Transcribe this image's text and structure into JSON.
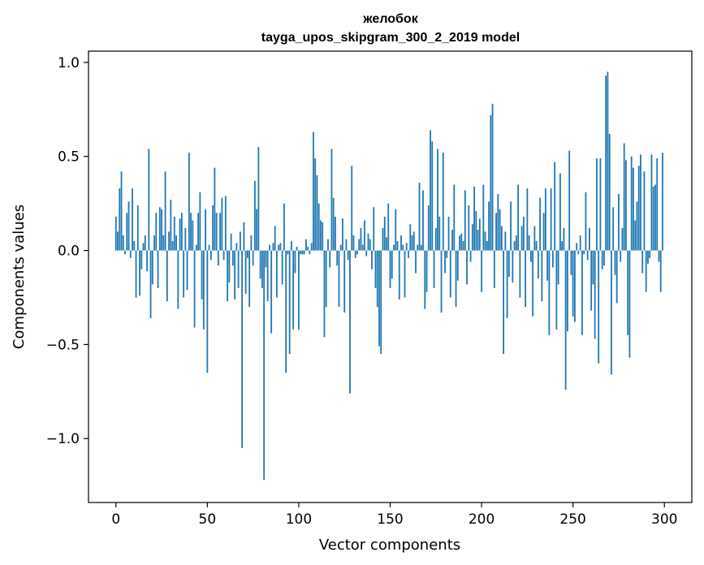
{
  "chart_data": {
    "type": "bar",
    "title_line1": "желобок",
    "title_line2": "tayga_upos_skipgram_300_2_2019 model",
    "xlabel": "Vector components",
    "ylabel": "Components values",
    "xlim": [
      -15,
      315
    ],
    "ylim": [
      -1.34,
      1.06
    ],
    "xticks": [
      0,
      50,
      100,
      150,
      200,
      250,
      300
    ],
    "xtick_labels": [
      "0",
      "50",
      "100",
      "150",
      "200",
      "250",
      "300"
    ],
    "yticks": [
      -1.0,
      -0.5,
      0.0,
      0.5,
      1.0
    ],
    "ytick_labels": [
      "−1.0",
      "−0.5",
      "0.0",
      "0.5",
      "1.0"
    ],
    "bar_color": "#1f77b4",
    "grid": false,
    "values": [
      0.18,
      0.1,
      0.33,
      0.42,
      0.08,
      -0.02,
      0.2,
      0.26,
      -0.04,
      0.33,
      0.05,
      -0.25,
      0.24,
      -0.24,
      -0.1,
      0.04,
      0.08,
      -0.11,
      0.54,
      -0.36,
      -0.18,
      0.08,
      0.2,
      -0.2,
      0.23,
      0.22,
      0.08,
      0.42,
      -0.27,
      0.1,
      0.27,
      0.05,
      0.18,
      0.08,
      -0.31,
      0.17,
      0.2,
      -0.25,
      0.12,
      -0.21,
      0.52,
      0.2,
      0.16,
      -0.41,
      0.03,
      0.2,
      0.31,
      -0.26,
      -0.42,
      0.22,
      -0.65,
      0.03,
      -0.05,
      0.24,
      0.44,
      0.2,
      -0.08,
      0.2,
      0.28,
      -0.05,
      0.29,
      -0.27,
      -0.17,
      0.09,
      -0.08,
      -0.26,
      0.04,
      -0.2,
      0.1,
      -1.05,
      0.15,
      -0.23,
      -0.04,
      -0.3,
      0.08,
      -0.08,
      0.37,
      0.22,
      0.55,
      -0.15,
      -0.2,
      -1.22,
      -0.09,
      -0.27,
      0.03,
      -0.44,
      0.04,
      0.13,
      -0.25,
      0.03,
      0.04,
      -0.18,
      0.25,
      -0.65,
      -0.02,
      -0.55,
      0.05,
      -0.42,
      -0.12,
      0.02,
      -0.42,
      -0.02,
      -0.02,
      -0.02,
      0.06,
      0.02,
      -0.02,
      0.04,
      0.63,
      0.49,
      0.4,
      0.25,
      0.16,
      0.15,
      -0.46,
      -0.3,
      0.06,
      -0.09,
      0.54,
      0.28,
      0.18,
      -0.08,
      -0.3,
      0.03,
      0.17,
      -0.33,
      0.06,
      -0.05,
      -0.76,
      0.45,
      0.08,
      -0.04,
      -0.02,
      0.06,
      0.12,
      0.03,
      0.16,
      -0.03,
      0.09,
      0.06,
      -0.1,
      0.23,
      -0.2,
      -0.3,
      -0.51,
      -0.55,
      0.12,
      0.18,
      0.07,
      0.25,
      -0.2,
      -0.15,
      0.03,
      0.22,
      0.05,
      -0.26,
      0.08,
      0.03,
      -0.25,
      0.04,
      -0.04,
      0.14,
      0.08,
      0.1,
      -0.12,
      0.03,
      0.36,
      0.03,
      0.32,
      -0.31,
      -0.22,
      0.24,
      0.64,
      0.58,
      -0.2,
      0.12,
      0.54,
      0.18,
      -0.33,
      0.52,
      -0.12,
      -0.04,
      0.18,
      -0.25,
      0.11,
      0.35,
      -0.3,
      -0.16,
      0.08,
      0.09,
      0.05,
      0.32,
      -0.18,
      0.24,
      -0.06,
      0.14,
      0.34,
      0.21,
      0.11,
      0.17,
      -0.22,
      0.35,
      0.1,
      0.05,
      0.26,
      0.72,
      0.78,
      -0.2,
      0.2,
      0.3,
      0.22,
      0.13,
      -0.55,
      0.1,
      -0.36,
      -0.14,
      0.26,
      -0.17,
      0.05,
      0.08,
      0.35,
      -0.25,
      0.13,
      0.18,
      -0.3,
      0.33,
      0.08,
      -0.06,
      -0.35,
      0.13,
      0.05,
      -0.15,
      0.28,
      -0.27,
      0.2,
      0.33,
      -0.16,
      -0.45,
      0.33,
      -0.09,
      0.47,
      -0.42,
      -0.18,
      0.41,
      0.05,
      0.12,
      -0.74,
      -0.43,
      0.53,
      -0.13,
      -0.35,
      -0.38,
      0.04,
      -0.02,
      0.08,
      -0.45,
      -0.02,
      0.31,
      -0.05,
      0.12,
      -0.32,
      -0.18,
      -0.47,
      0.49,
      -0.6,
      0.49,
      -0.1,
      -0.08,
      0.93,
      0.95,
      0.62,
      -0.66,
      0.23,
      -0.13,
      -0.28,
      0.3,
      -0.06,
      0.12,
      0.57,
      0.48,
      -0.45,
      -0.57,
      0.5,
      0.44,
      0.16,
      0.26,
      0.45,
      0.51,
      -0.12,
      0.42,
      -0.22,
      -0.07,
      -0.04,
      0.51,
      0.34,
      0.35,
      0.49,
      -0.06,
      -0.22,
      0.52
    ]
  }
}
